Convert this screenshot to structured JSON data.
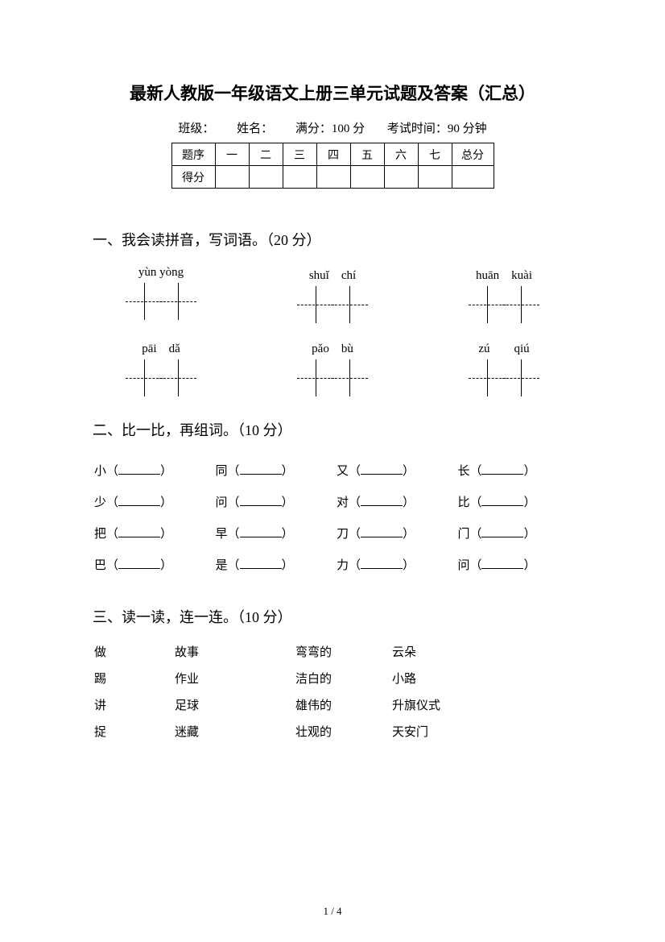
{
  "title": "最新人教版一年级语文上册三单元试题及答案（汇总）",
  "info": {
    "class_label": "班级：",
    "name_label": "姓名：",
    "full_score": "满分：100 分",
    "exam_time": "考试时间：90 分钟"
  },
  "score_table": {
    "row1": [
      "题序",
      "一",
      "二",
      "三",
      "四",
      "五",
      "六",
      "七",
      "总分"
    ],
    "row2_label": "得分"
  },
  "section1": {
    "heading": "一、我会读拼音，写词语。（20 分）",
    "items": [
      [
        "yùn yòng",
        "shuǐ　chí",
        "huān　kuài"
      ],
      [
        "pāi　dǎ",
        "pǎo　bù",
        "zú　　qiú"
      ]
    ]
  },
  "section2": {
    "heading": "二、比一比，再组词。（10 分）",
    "rows": [
      [
        "小",
        "同",
        "又",
        "长"
      ],
      [
        "少",
        "问",
        "对",
        "比"
      ],
      [
        "把",
        "早",
        "刀",
        "门"
      ],
      [
        "巴",
        "是",
        "力",
        "问"
      ]
    ]
  },
  "section3": {
    "heading": "三、读一读，连一连。（10 分）",
    "rows": [
      [
        "做",
        "故事",
        "弯弯的",
        "云朵"
      ],
      [
        "踢",
        "作业",
        "洁白的",
        "小路"
      ],
      [
        "讲",
        "足球",
        "雄伟的",
        "升旗仪式"
      ],
      [
        "捉",
        "迷藏",
        "壮观的",
        "天安门"
      ]
    ]
  },
  "page_number": "1 / 4"
}
